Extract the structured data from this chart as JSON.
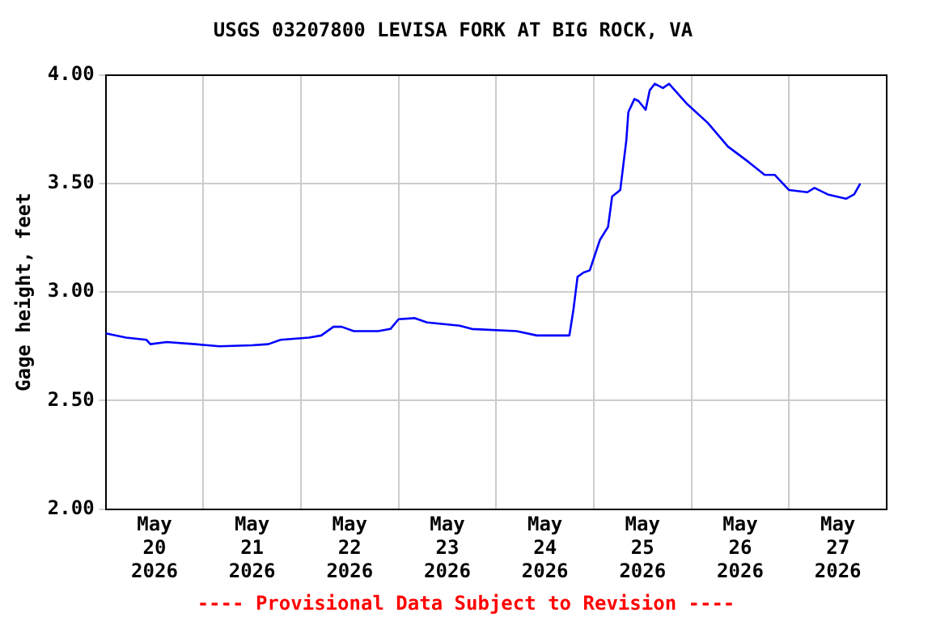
{
  "chart_data": {
    "type": "line",
    "title": "USGS 03207800 LEVISA FORK AT BIG ROCK, VA",
    "ylabel": "Gage height, feet",
    "annotations": [
      "---- Provisional Data Subject to Revision ----"
    ],
    "x": [
      "2026-05-20T00:00",
      "2026-05-20T05:00",
      "2026-05-20T10:00",
      "2026-05-20T11:00",
      "2026-05-20T15:00",
      "2026-05-20T22:00",
      "2026-05-21T04:00",
      "2026-05-21T12:00",
      "2026-05-21T16:00",
      "2026-05-21T19:00",
      "2026-05-22T02:00",
      "2026-05-22T05:00",
      "2026-05-22T08:00",
      "2026-05-22T10:00",
      "2026-05-22T13:00",
      "2026-05-22T19:00",
      "2026-05-22T22:00",
      "2026-05-23T00:00",
      "2026-05-23T04:00",
      "2026-05-23T07:00",
      "2026-05-23T15:00",
      "2026-05-23T18:00",
      "2026-05-24T05:00",
      "2026-05-24T10:00",
      "2026-05-24T18:00",
      "2026-05-24T19:00",
      "2026-05-24T20:00",
      "2026-05-24T21:30",
      "2026-05-24T23:00",
      "2026-05-25T01:30",
      "2026-05-25T03:30",
      "2026-05-25T04:30",
      "2026-05-25T06:30",
      "2026-05-25T08:00",
      "2026-05-25T08:30",
      "2026-05-25T10:00",
      "2026-05-25T11:00",
      "2026-05-25T12:45",
      "2026-05-25T13:45",
      "2026-05-25T15:00",
      "2026-05-25T17:00",
      "2026-05-25T18:30",
      "2026-05-25T22:45",
      "2026-05-26T04:00",
      "2026-05-26T09:00",
      "2026-05-26T14:00",
      "2026-05-26T18:00",
      "2026-05-26T20:30",
      "2026-05-27T00:00",
      "2026-05-27T04:30",
      "2026-05-27T06:15",
      "2026-05-27T09:30",
      "2026-05-27T14:00",
      "2026-05-27T16:00",
      "2026-05-27T17:30"
    ],
    "series": [
      {
        "color": "#0000ff",
        "values": [
          2.81,
          2.79,
          2.78,
          2.76,
          2.77,
          2.76,
          2.75,
          2.755,
          2.76,
          2.78,
          2.79,
          2.8,
          2.84,
          2.84,
          2.82,
          2.82,
          2.83,
          2.875,
          2.88,
          2.86,
          2.845,
          2.83,
          2.82,
          2.8,
          2.8,
          2.92,
          3.07,
          3.09,
          3.1,
          3.24,
          3.3,
          3.44,
          3.47,
          3.7,
          3.83,
          3.89,
          3.88,
          3.84,
          3.93,
          3.96,
          3.94,
          3.96,
          3.87,
          3.78,
          3.67,
          3.6,
          3.54,
          3.54,
          3.47,
          3.46,
          3.48,
          3.45,
          3.43,
          3.45,
          3.5
        ]
      }
    ],
    "xlim": [
      "2026-05-20T00:00",
      "2026-05-28T00:00"
    ],
    "xticks": [
      {
        "value": "2026-05-20T12:00",
        "label": "May 20 2026"
      },
      {
        "value": "2026-05-21T00:00",
        "label": null
      },
      {
        "value": "2026-05-21T12:00",
        "label": "May 21 2026"
      },
      {
        "value": "2026-05-22T00:00",
        "label": null
      },
      {
        "value": "2026-05-22T12:00",
        "label": "May 22 2026"
      },
      {
        "value": "2026-05-23T00:00",
        "label": null
      },
      {
        "value": "2026-05-23T12:00",
        "label": "May 23 2026"
      },
      {
        "value": "2026-05-24T00:00",
        "label": null
      },
      {
        "value": "2026-05-24T12:00",
        "label": "May 24 2026"
      },
      {
        "value": "2026-05-25T00:00",
        "label": null
      },
      {
        "value": "2026-05-25T12:00",
        "label": "May 25 2026"
      },
      {
        "value": "2026-05-26T00:00",
        "label": null
      },
      {
        "value": "2026-05-26T12:00",
        "label": "May 26 2026"
      },
      {
        "value": "2026-05-27T00:00",
        "label": null
      },
      {
        "value": "2026-05-27T12:00",
        "label": "May 27 2026"
      }
    ],
    "ylim": [
      2,
      4
    ],
    "yticks": [
      {
        "value": 2,
        "label": "2.00"
      },
      {
        "value": 2.5,
        "label": "2.50"
      },
      {
        "value": 3,
        "label": "3.00"
      },
      {
        "value": 3.5,
        "label": "3.50"
      },
      {
        "value": 4,
        "label": "4.00"
      }
    ],
    "grid": true,
    "legend": false,
    "marker": "none",
    "line_style": "solid"
  }
}
